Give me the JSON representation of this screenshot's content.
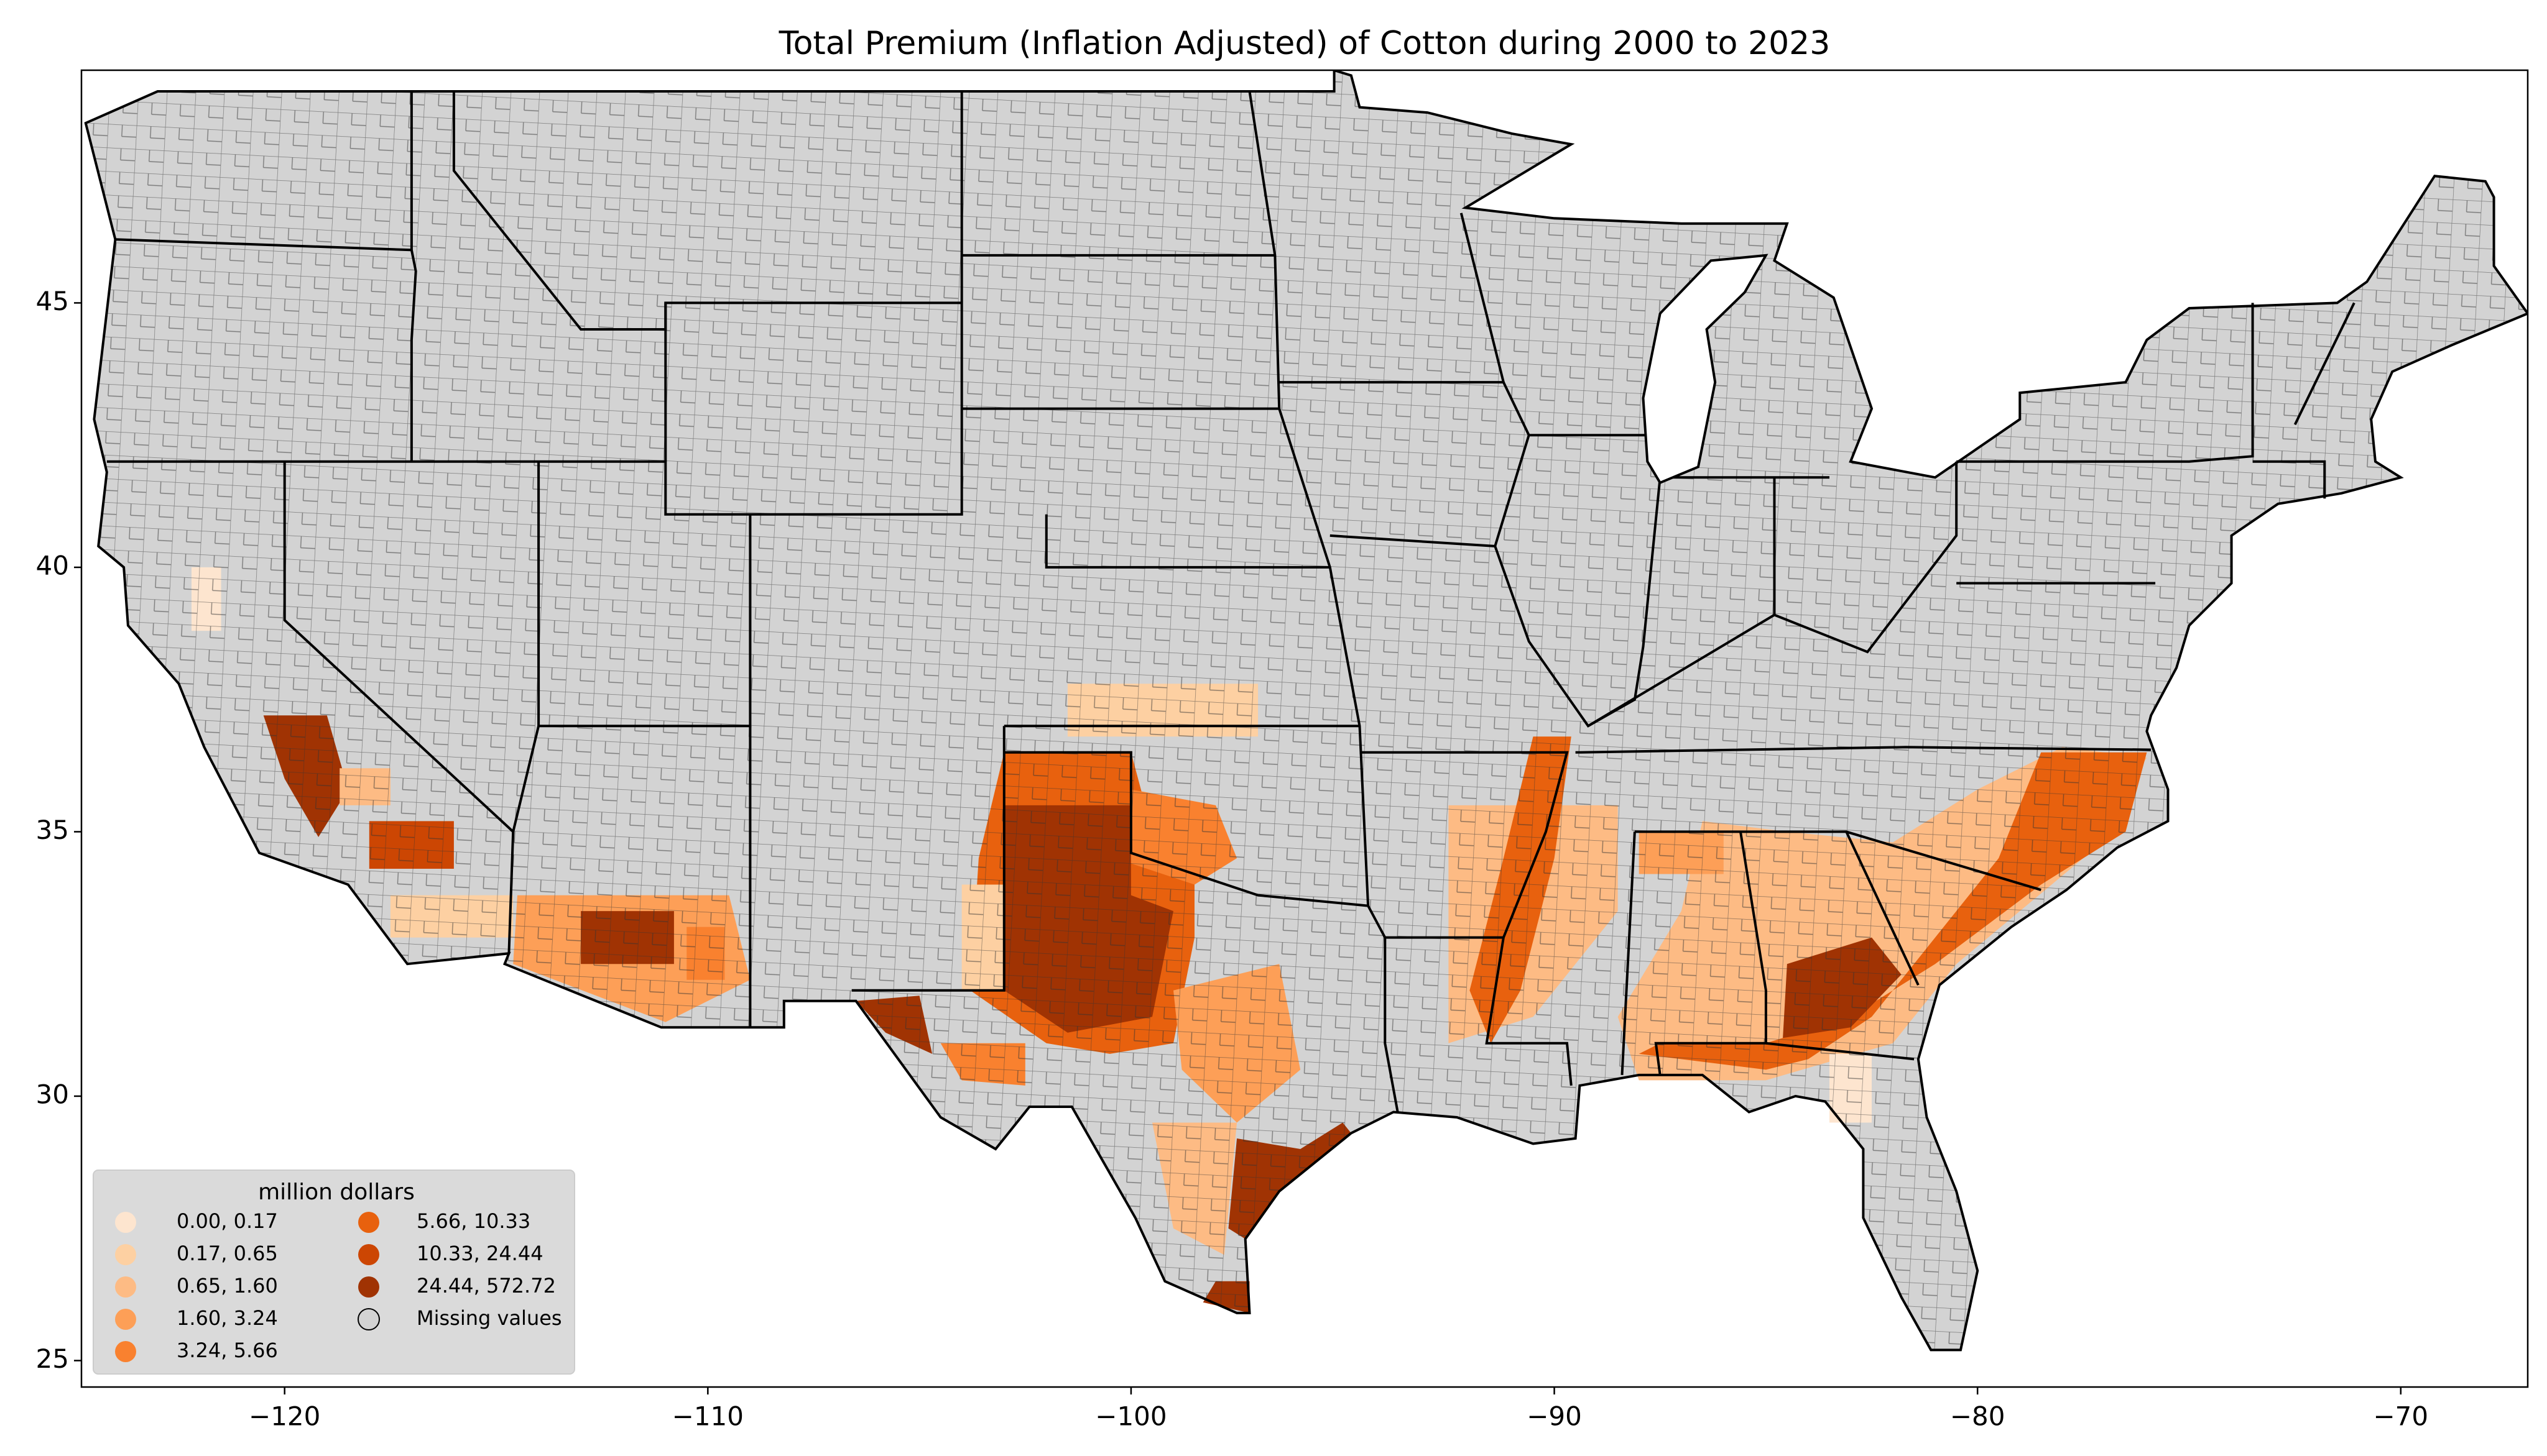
{
  "chart_data": {
    "type": "choropleth",
    "title": "Total  Premium  (Inflation Adjusted) of Cotton during 2000 to 2023",
    "xlim": [
      -124.8,
      -67.0
    ],
    "ylim": [
      24.5,
      49.4
    ],
    "xticks": [
      {
        "value": -120,
        "label": "−120"
      },
      {
        "value": -110,
        "label": "−110"
      },
      {
        "value": -100,
        "label": "−100"
      },
      {
        "value": -90,
        "label": "−90"
      },
      {
        "value": -80,
        "label": "−80"
      },
      {
        "value": -70,
        "label": "−70"
      }
    ],
    "yticks": [
      25,
      30,
      35,
      40,
      45
    ],
    "legend": {
      "title": "million dollars",
      "position": "lower left",
      "items": [
        {
          "label": "0.00, 0.17",
          "color": "#fde5cf"
        },
        {
          "label": "0.17, 0.65",
          "color": "#fdd0a2"
        },
        {
          "label": "0.65, 1.60",
          "color": "#fdbb84"
        },
        {
          "label": "1.60, 3.24",
          "color": "#fd9f57"
        },
        {
          "label": "3.24, 5.66",
          "color": "#f9812f"
        },
        {
          "label": "5.66, 10.33",
          "color": "#e8610e"
        },
        {
          "label": "10.33, 24.44",
          "color": "#cc4603"
        },
        {
          "label": "24.44, 572.72",
          "color": "#a03303"
        },
        {
          "label": "Missing values",
          "color": "#d3d3d3"
        }
      ]
    }
  }
}
